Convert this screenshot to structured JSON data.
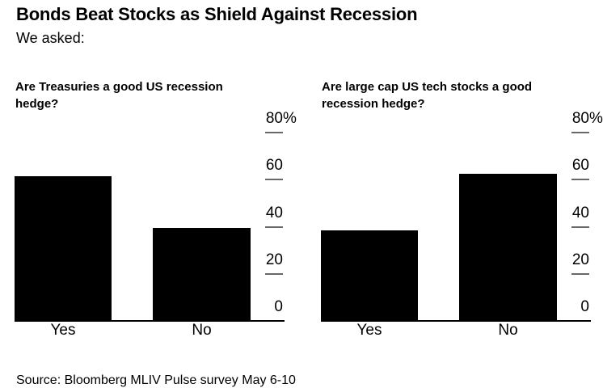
{
  "header": {
    "title": "Bonds Beat Stocks as Shield Against Recession",
    "subtitle": "We asked:"
  },
  "footer": {
    "source": "Source: Bloomberg MLIV Pulse survey May 6-10"
  },
  "colors": {
    "bar": "#000000",
    "axis_line": "#000000",
    "tick_dash": "#686868",
    "text": "#000000",
    "background": "#ffffff"
  },
  "chart_data": [
    {
      "type": "bar",
      "title": "Are Treasuries a good US recession hedge?",
      "categories": [
        "Yes",
        "No"
      ],
      "values": [
        61,
        39
      ],
      "unit": "%",
      "xlabel": "",
      "ylabel": "",
      "ylim": [
        0,
        80
      ],
      "grid": false,
      "tick_side": "right",
      "yticks": [
        {
          "value": 0,
          "label": "0"
        },
        {
          "value": 20,
          "label": "20"
        },
        {
          "value": 40,
          "label": "40"
        },
        {
          "value": 60,
          "label": "60"
        },
        {
          "value": 80,
          "label": "80",
          "suffix": "%"
        }
      ]
    },
    {
      "type": "bar",
      "title": "Are large cap US tech stocks a good recession hedge?",
      "categories": [
        "Yes",
        "No"
      ],
      "values": [
        38,
        62
      ],
      "unit": "%",
      "xlabel": "",
      "ylabel": "",
      "ylim": [
        0,
        80
      ],
      "grid": false,
      "tick_side": "right",
      "yticks": [
        {
          "value": 0,
          "label": "0"
        },
        {
          "value": 20,
          "label": "20"
        },
        {
          "value": 40,
          "label": "40"
        },
        {
          "value": 60,
          "label": "60"
        },
        {
          "value": 80,
          "label": "80",
          "suffix": "%"
        }
      ]
    }
  ]
}
